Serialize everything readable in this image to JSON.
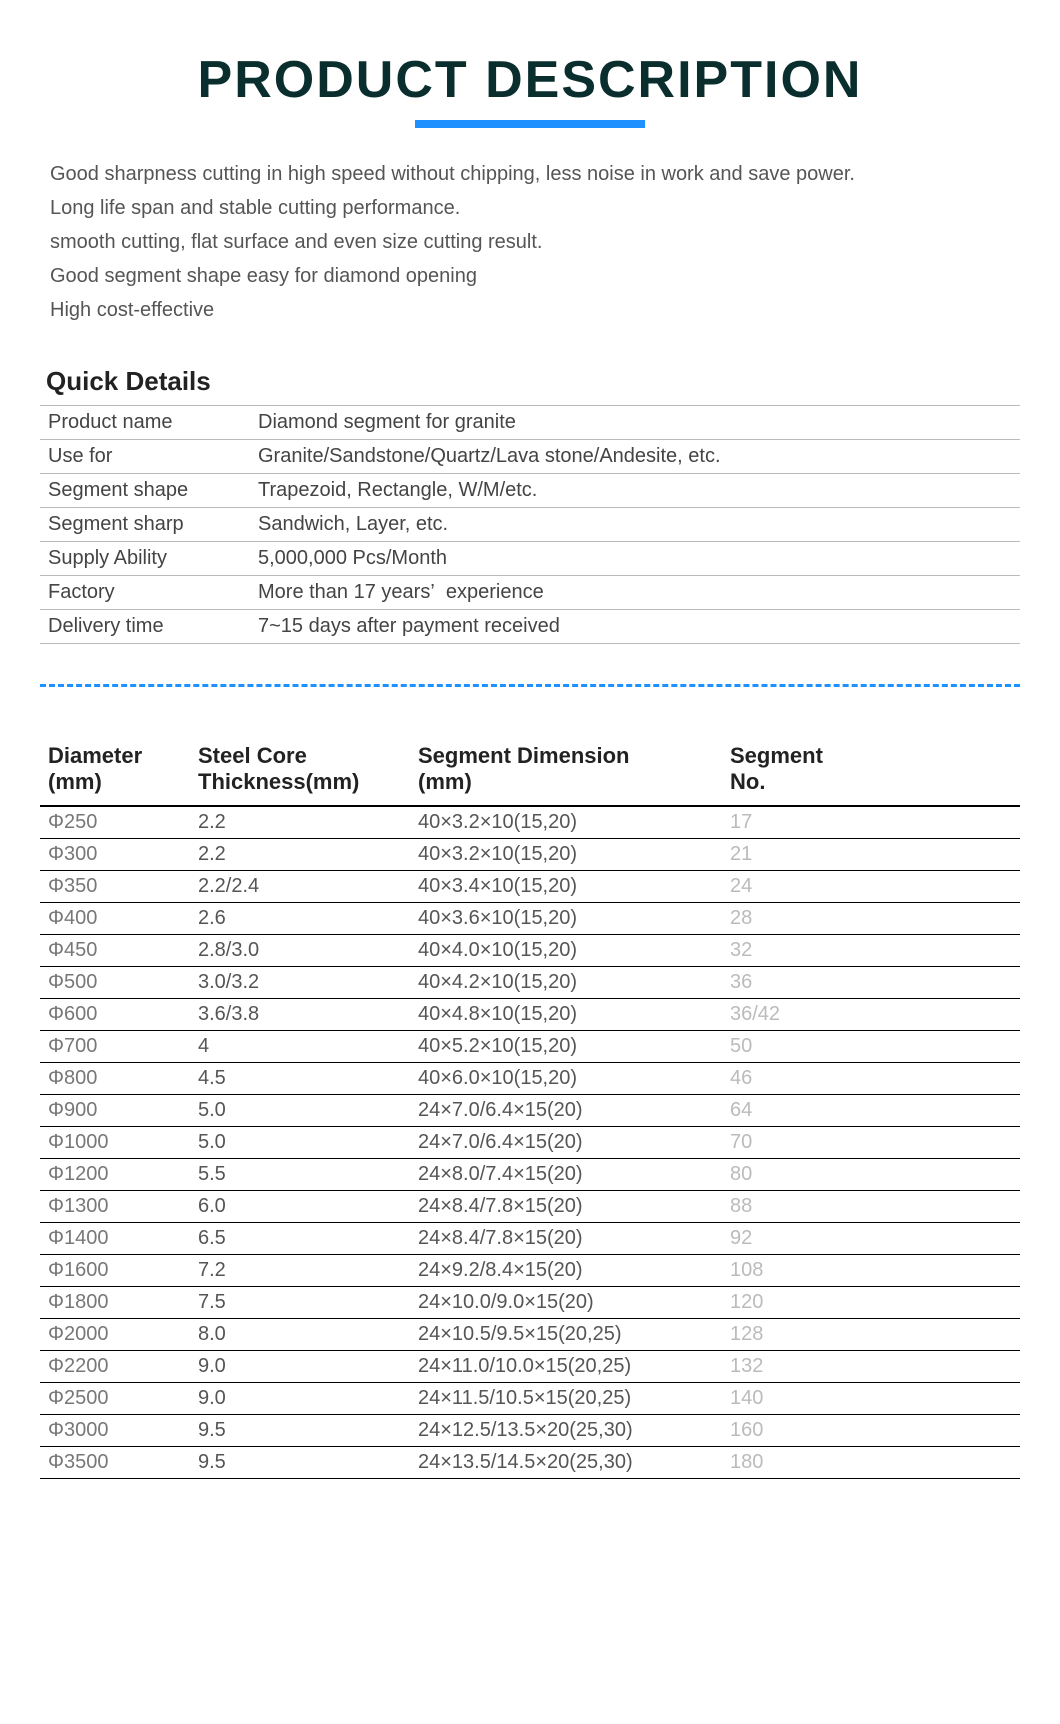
{
  "title": "PRODUCT DESCRIPTION",
  "descriptions": [
    "Good sharpness cutting in high speed without chipping, less noise in work and save power.",
    "Long life span and stable cutting performance.",
    "smooth cutting, flat surface and even size cutting result.",
    "Good segment shape easy for diamond opening",
    "High cost-effective"
  ],
  "quick_title": "Quick Details",
  "quick_details": [
    {
      "label": "Product name",
      "value": "Diamond segment for granite"
    },
    {
      "label": "Use for",
      "value": "Granite/Sandstone/Quartz/Lava stone/Andesite, etc."
    },
    {
      "label": "Segment shape",
      "value": "Trapezoid, Rectangle, W/M/etc."
    },
    {
      "label": "Segment sharp",
      "value": "Sandwich, Layer, etc."
    },
    {
      "label": "Supply Ability",
      "value": "5,000,000 Pcs/Month"
    },
    {
      "label": "Factory",
      "value": "More than 17 years’  experience"
    },
    {
      "label": "Delivery time",
      "value": "7~15 days after payment received"
    }
  ],
  "spec_headers": {
    "h1": "Diameter (mm)",
    "h2": "Steel Core Thickness(mm)",
    "h3": "Segment Dimension (mm)",
    "h4": "Segment No."
  },
  "spec_rows": [
    {
      "d": "Φ250",
      "t": "2.2",
      "s": "40×3.2×10(15,20)",
      "n": "17"
    },
    {
      "d": "Φ300",
      "t": "2.2",
      "s": "40×3.2×10(15,20)",
      "n": "21"
    },
    {
      "d": "Φ350",
      "t": "2.2/2.4",
      "s": "40×3.4×10(15,20)",
      "n": "24"
    },
    {
      "d": "Φ400",
      "t": "2.6",
      "s": "40×3.6×10(15,20)",
      "n": "28"
    },
    {
      "d": "Φ450",
      "t": "2.8/3.0",
      "s": "40×4.0×10(15,20)",
      "n": "32"
    },
    {
      "d": "Φ500",
      "t": "3.0/3.2",
      "s": "40×4.2×10(15,20)",
      "n": "36"
    },
    {
      "d": "Φ600",
      "t": "3.6/3.8",
      "s": "40×4.8×10(15,20)",
      "n": "36/42"
    },
    {
      "d": "Φ700",
      "t": "4",
      "s": "40×5.2×10(15,20)",
      "n": "50"
    },
    {
      "d": "Φ800",
      "t": "4.5",
      "s": "40×6.0×10(15,20)",
      "n": "46"
    },
    {
      "d": "Φ900",
      "t": "5.0",
      "s": "24×7.0/6.4×15(20)",
      "n": "64"
    },
    {
      "d": "Φ1000",
      "t": "5.0",
      "s": "24×7.0/6.4×15(20)",
      "n": "70"
    },
    {
      "d": "Φ1200",
      "t": "5.5",
      "s": "24×8.0/7.4×15(20)",
      "n": "80"
    },
    {
      "d": "Φ1300",
      "t": "6.0",
      "s": "24×8.4/7.8×15(20)",
      "n": "88"
    },
    {
      "d": "Φ1400",
      "t": "6.5",
      "s": "24×8.4/7.8×15(20)",
      "n": "92"
    },
    {
      "d": "Φ1600",
      "t": "7.2",
      "s": "24×9.2/8.4×15(20)",
      "n": "108"
    },
    {
      "d": "Φ1800",
      "t": "7.5",
      "s": "24×10.0/9.0×15(20)",
      "n": "120"
    },
    {
      "d": "Φ2000",
      "t": "8.0",
      "s": "24×10.5/9.5×15(20,25)",
      "n": "128"
    },
    {
      "d": "Φ2200",
      "t": "9.0",
      "s": "24×11.0/10.0×15(20,25)",
      "n": "132"
    },
    {
      "d": "Φ2500",
      "t": "9.0",
      "s": "24×11.5/10.5×15(20,25)",
      "n": "140"
    },
    {
      "d": "Φ3000",
      "t": "9.5",
      "s": "24×12.5/13.5×20(25,30)",
      "n": "160"
    },
    {
      "d": "Φ3500",
      "t": "9.5",
      "s": "24×13.5/14.5×20(25,30)",
      "n": "180"
    }
  ],
  "colors": {
    "title": "#0a2e2e",
    "underline": "#1e90ff",
    "divider": "#1e90ff",
    "text": "#555555",
    "faded": "#bbbbbb",
    "border": "#000000"
  }
}
